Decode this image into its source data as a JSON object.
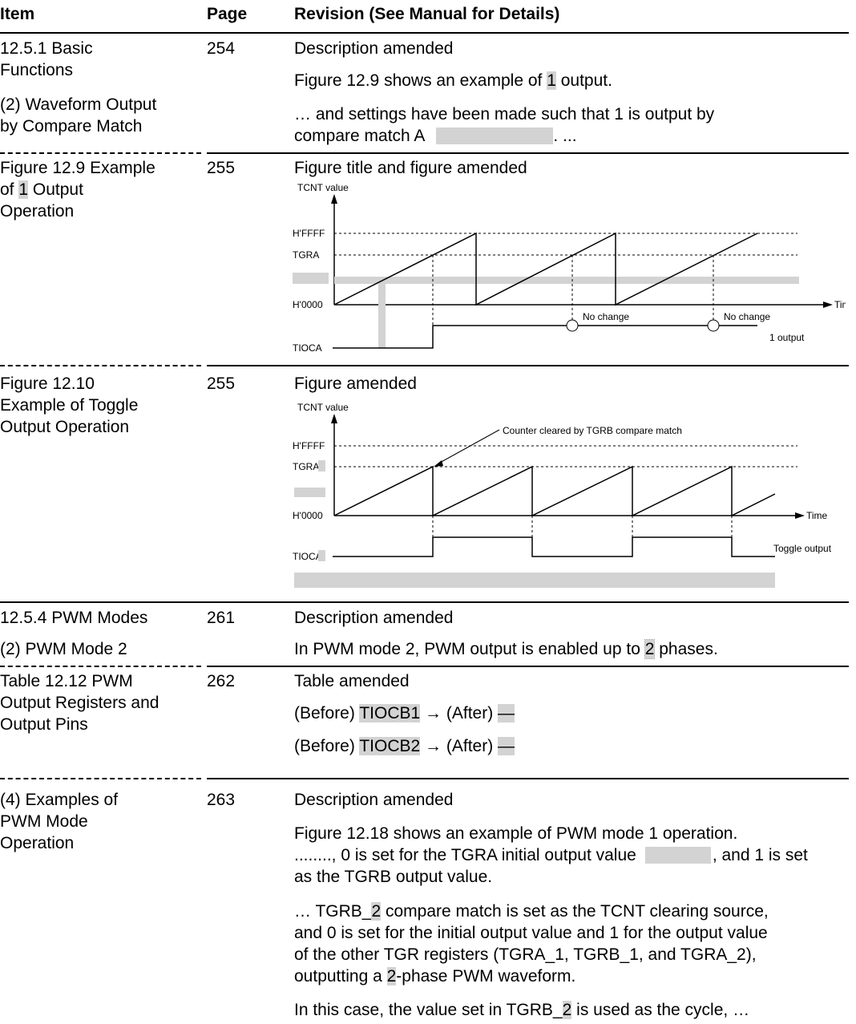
{
  "header": {
    "item": "Item",
    "page": "Page",
    "revision": "Revision (See Manual for Details)"
  },
  "rows": [
    {
      "item_lines": [
        "12.5.1  Basic",
        "Functions"
      ],
      "item_sub_lines": [
        "(2) Waveform Output",
        "by Compare Match"
      ],
      "page": "254",
      "desc": "Description amended",
      "line1_pre": "Figure 12.9 shows an example of ",
      "line1_hl": "1",
      "line1_post": " output.",
      "line2a": "… and settings have been made such that 1 is output by",
      "line2b_pre": "compare match A",
      "line2b_post": ". ..."
    },
    {
      "item_line1": "Figure 12.9  Example",
      "item_line2_pre": "of ",
      "item_line2_hl": "1",
      "item_line2_post": " Output",
      "item_line3": "Operation",
      "page": "255",
      "desc": "Figure title and figure amended",
      "fig": {
        "y_label": "TCNT value",
        "hffff": "H'FFFF",
        "tgra": "TGRA",
        "h0000": "H'0000",
        "time": "Time",
        "no_change_1": "No change",
        "no_change_2": "No change",
        "tioca": "TIOCA",
        "output": "1 output"
      }
    },
    {
      "item_lines": [
        "Figure 12.10",
        "Example of Toggle",
        "Output Operation"
      ],
      "page": "255",
      "desc": "Figure amended",
      "fig": {
        "y_label": "TCNT value",
        "annotation": "Counter cleared by TGRB compare match",
        "hffff": "H'FFFF",
        "tgra_pre": "TGR",
        "tgra_hl": "A",
        "h0000": "H'0000",
        "time": "Time",
        "tioca_pre": "TIOC",
        "tioca_hl": "A",
        "output": "Toggle output"
      }
    },
    {
      "item_line1": "12.5.4  PWM Modes",
      "item_line2": "(2) PWM Mode 2",
      "page": "261",
      "desc": "Description amended",
      "line1_pre": "In PWM mode 2, PWM output is enabled up to ",
      "line1_hl": "2",
      "line1_post": " phases."
    },
    {
      "item_lines": [
        "Table 12.12  PWM",
        "Output Registers and",
        "Output Pins"
      ],
      "page": "262",
      "desc": "Table amended",
      "lines": [
        {
          "pre": "(Before) ",
          "hl": "TIOCB1",
          "mid": " → (After) ",
          "hl2": "—"
        },
        {
          "pre": "(Before) ",
          "hl": "TIOCB2",
          "mid": " → (After) ",
          "hl2": "—"
        }
      ]
    },
    {
      "item_lines": [
        "(4) Examples of",
        "PWM Mode",
        "Operation"
      ],
      "page": "263",
      "desc": "Description amended",
      "p1_line1": "Figure 12.18 shows an example of PWM mode 1 operation.",
      "p1_line2_pre": "........, 0 is set for the TGRA initial output value",
      "p1_line2_post": ", and 1 is set",
      "p1_line3": "as the TGRB output value.",
      "p2_line1_pre": "… TGRB_",
      "p2_line1_hl": "2",
      "p2_line1_post": " compare match is set as the TCNT clearing source,",
      "p2_line2": "and 0 is set for the initial output value and 1 for the output value",
      "p2_line3": "of the other TGR registers (TGRA_1, TGRB_1, and TGRA_2),",
      "p2_line4_pre": "outputting a ",
      "p2_line4_hl": "2",
      "p2_line4_post": "-phase PWM waveform.",
      "p3_pre": "In this case, the value set in TGRB_",
      "p3_hl": "2",
      "p3_post": " is used as the cycle, …"
    }
  ]
}
